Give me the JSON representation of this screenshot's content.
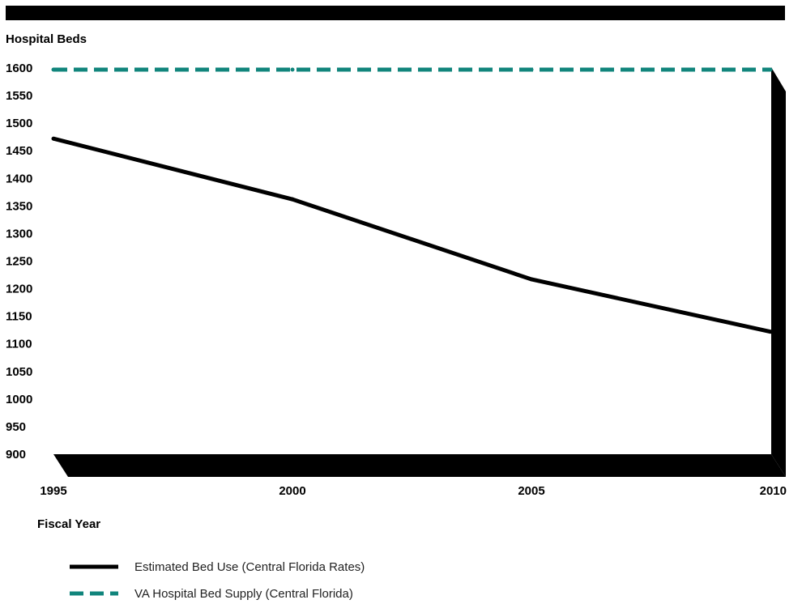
{
  "chart_data": {
    "type": "line",
    "title": "",
    "ylabel": "Hospital Beds",
    "xlabel": "Fiscal Year",
    "ylim": [
      900,
      1600
    ],
    "xlim": [
      1995,
      2010
    ],
    "y_ticks": [
      "1600",
      "1550",
      "1500",
      "1450",
      "1400",
      "1350",
      "1300",
      "1250",
      "1200",
      "1150",
      "1100",
      "1050",
      "1000",
      "950",
      "900"
    ],
    "x_ticks": [
      "1995",
      "2000",
      "2005",
      "2010"
    ],
    "grid": false,
    "legend_position": "bottom",
    "series": [
      {
        "name": "Estimated Bed Use (Central Florida Rates)",
        "color": "#000000",
        "style": "solid",
        "x": [
          1995,
          2000,
          2005,
          2010
        ],
        "y": [
          1472,
          1362,
          1217,
          1122
        ]
      },
      {
        "name": "VA Hospital Bed Supply (Central Florida)",
        "color": "#11857c",
        "style": "dashed",
        "x": [
          1995,
          2000,
          2005,
          2010
        ],
        "y": [
          1597,
          1597,
          1597,
          1597
        ]
      }
    ]
  }
}
